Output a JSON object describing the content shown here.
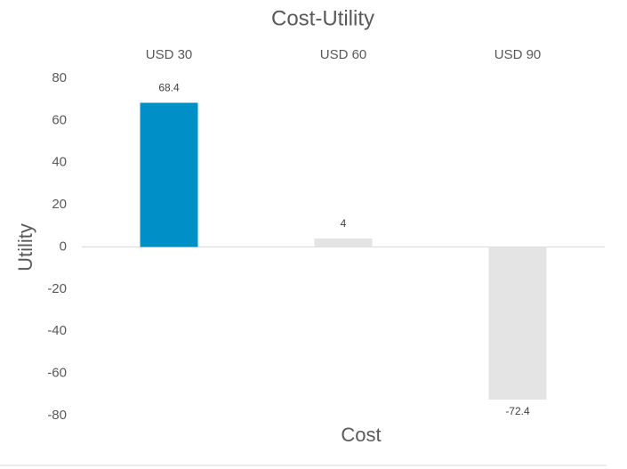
{
  "chart_data": {
    "type": "bar",
    "title": "Cost-Utility",
    "x_label": "Cost",
    "y_label": "Utility",
    "categories": [
      "USD 30",
      "USD 60",
      "USD 90"
    ],
    "values": [
      68.4,
      4,
      -72.4
    ],
    "colors": [
      "#0090c8",
      "#e4e4e4",
      "#e4e4e4"
    ],
    "ylim": [
      -80,
      80
    ],
    "yticks": [
      -80,
      -60,
      -40,
      -20,
      0,
      20,
      40,
      60,
      80
    ],
    "grid": false
  }
}
